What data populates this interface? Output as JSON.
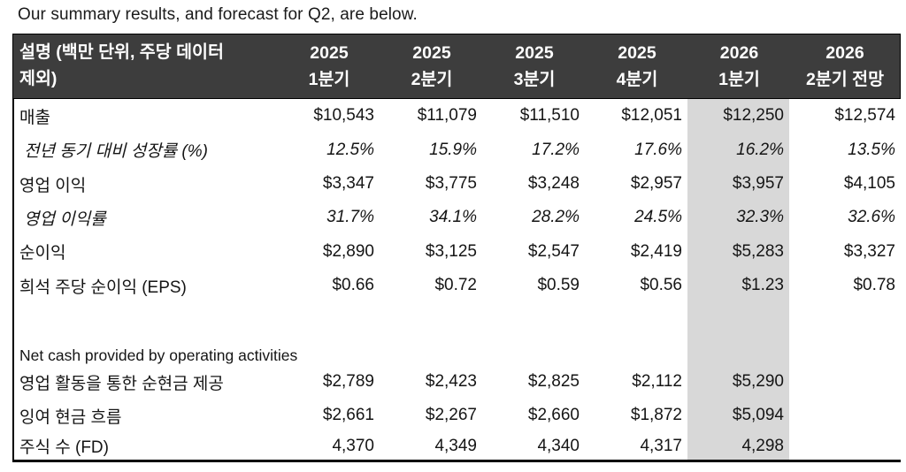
{
  "page": {
    "title": "Our summary results, and forecast for Q2, are below."
  },
  "colors": {
    "header_bg": "#3d3d3d",
    "header_text": "#ffffff",
    "highlight_column_bg": "#d8d8d8",
    "border": "#000000"
  },
  "table": {
    "header": {
      "description_line1": "설명 (백만 단위, 주당 데이터",
      "description_line2": "제외)",
      "columns": [
        {
          "line1": "2025",
          "line2": "1분기"
        },
        {
          "line1": "2025",
          "line2": "2분기"
        },
        {
          "line1": "2025",
          "line2": "3분기"
        },
        {
          "line1": "2025",
          "line2": "4분기"
        },
        {
          "line1": "2026",
          "line2": "1분기"
        },
        {
          "line1": "2026",
          "line2": "2분기 전망"
        }
      ]
    },
    "highlight_column_index": 4,
    "rows": [
      {
        "label": "매출",
        "style": "normal",
        "values": [
          "$10,543",
          "$11,079",
          "$11,510",
          "$12,051",
          "$12,250",
          "$12,574"
        ]
      },
      {
        "label": "전년 동기 대비 성장률 (%)",
        "style": "italic",
        "values": [
          "12.5%",
          "15.9%",
          "17.2%",
          "17.6%",
          "16.2%",
          "13.5%"
        ]
      },
      {
        "label": "영업 이익",
        "style": "normal",
        "values": [
          "$3,347",
          "$3,775",
          "$3,248",
          "$2,957",
          "$3,957",
          "$4,105"
        ]
      },
      {
        "label": "영업 이익률",
        "style": "italic",
        "values": [
          "31.7%",
          "34.1%",
          "28.2%",
          "24.5%",
          "32.3%",
          "32.6%"
        ]
      },
      {
        "label": "순이익",
        "style": "normal",
        "values": [
          "$2,890",
          "$3,125",
          "$2,547",
          "$2,419",
          "$5,283",
          "$3,327"
        ]
      },
      {
        "label": "희석 주당 순이익 (EPS)",
        "style": "normal",
        "values": [
          "$0.66",
          "$0.72",
          "$0.59",
          "$0.56",
          "$1.23",
          "$0.78"
        ]
      },
      {
        "label": "",
        "style": "spacer",
        "values": [
          "",
          "",
          "",
          "",
          "",
          ""
        ]
      },
      {
        "label": "Net cash provided by operating activities",
        "style": "section",
        "values": [
          "",
          "",
          "",
          "",
          "",
          ""
        ]
      },
      {
        "label": "영업 활동을 통한 순현금 제공",
        "style": "normal",
        "values": [
          "$2,789",
          "$2,423",
          "$2,825",
          "$2,112",
          "$5,290",
          ""
        ]
      },
      {
        "label": "잉여 현금 흐름",
        "style": "normal",
        "values": [
          "$2,661",
          "$2,267",
          "$2,660",
          "$1,872",
          "$5,094",
          ""
        ]
      },
      {
        "label": "주식 수 (FD)",
        "style": "normal",
        "values": [
          "4,370",
          "4,349",
          "4,340",
          "4,317",
          "4,298",
          ""
        ]
      }
    ]
  }
}
